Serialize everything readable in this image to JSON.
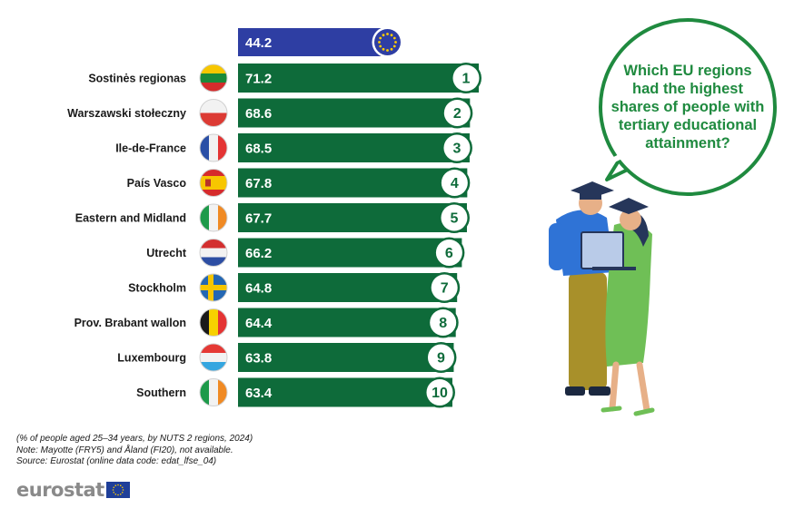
{
  "chart_data": {
    "type": "bar",
    "orientation": "horizontal",
    "reference": {
      "value": 44.2,
      "label": "44.2",
      "icon": "eu-flag-icon",
      "color": "#2e3ea3"
    },
    "categories": [
      "Sostinės regionas",
      "Warszawski stołeczny",
      "Ile-de-France",
      "País Vasco",
      "Eastern and Midland",
      "Utrecht",
      "Stockholm",
      "Prov. Brabant wallon",
      "Luxembourg",
      "Southern"
    ],
    "values": [
      71.2,
      68.6,
      68.5,
      67.8,
      67.7,
      66.2,
      64.8,
      64.4,
      63.8,
      63.4
    ],
    "value_labels": [
      "71.2",
      "68.6",
      "68.5",
      "67.8",
      "67.7",
      "66.2",
      "64.8",
      "64.4",
      "63.8",
      "63.4"
    ],
    "ranks": [
      "1",
      "2",
      "3",
      "4",
      "5",
      "6",
      "7",
      "8",
      "9",
      "10"
    ],
    "flags": [
      "lt",
      "pl",
      "fr",
      "es",
      "ie",
      "nl",
      "se",
      "be",
      "lu",
      "ie"
    ],
    "bar_color": "#0e6b3a",
    "xlim": [
      0,
      71.2
    ],
    "grid": false
  },
  "question": "Which EU regions had the highest shares of people with tertiary educational attainment?",
  "notes": [
    "(% of people aged 25–34 years, by NUTS 2 regions, 2024)",
    "Note: Mayotte (FRY5) and Åland (FI20), not available.",
    "Source: Eurostat (online data code: edat_lfse_04)"
  ],
  "logo": {
    "text": "eurostat",
    "icon": "eu-flag-icon"
  },
  "colors": {
    "accent": "#1f8a3f",
    "bar": "#0e6b3a",
    "eu_blue": "#2e3ea3",
    "eu_star": "#ffcc00"
  }
}
